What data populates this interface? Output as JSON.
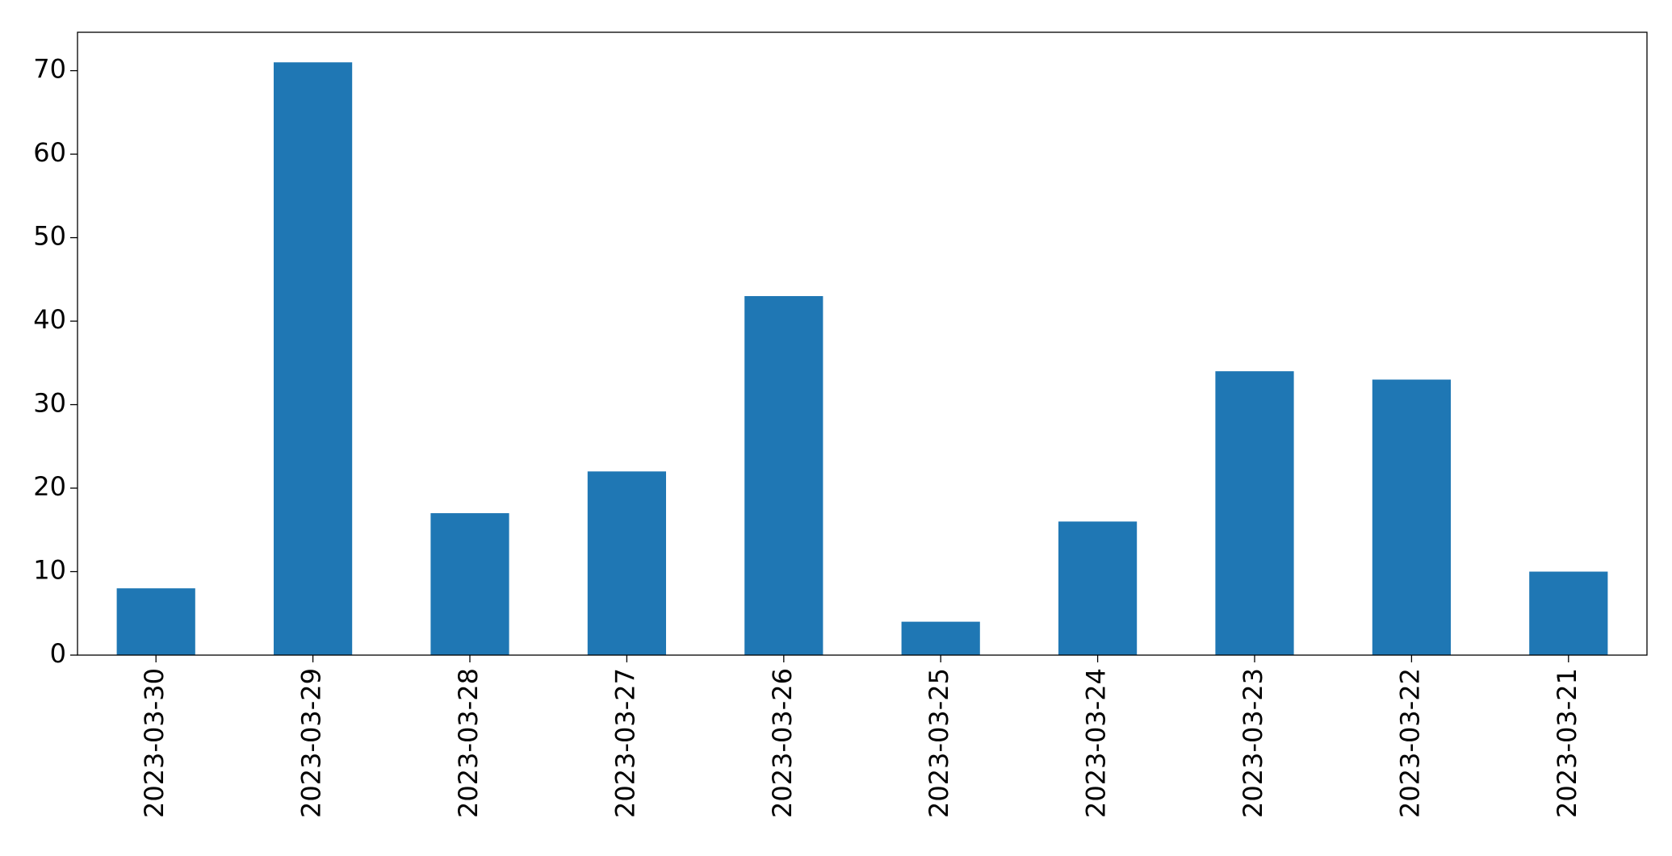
{
  "chart_data": {
    "type": "bar",
    "categories": [
      "2023-03-30",
      "2023-03-29",
      "2023-03-28",
      "2023-03-27",
      "2023-03-26",
      "2023-03-25",
      "2023-03-24",
      "2023-03-23",
      "2023-03-22",
      "2023-03-21"
    ],
    "values": [
      8,
      71,
      17,
      22,
      43,
      4,
      16,
      34,
      33,
      10
    ],
    "color": "#1f77b4",
    "ylim": [
      0,
      74.6
    ],
    "yticks": [
      0,
      10,
      20,
      30,
      40,
      50,
      60,
      70
    ],
    "grid": false
  }
}
